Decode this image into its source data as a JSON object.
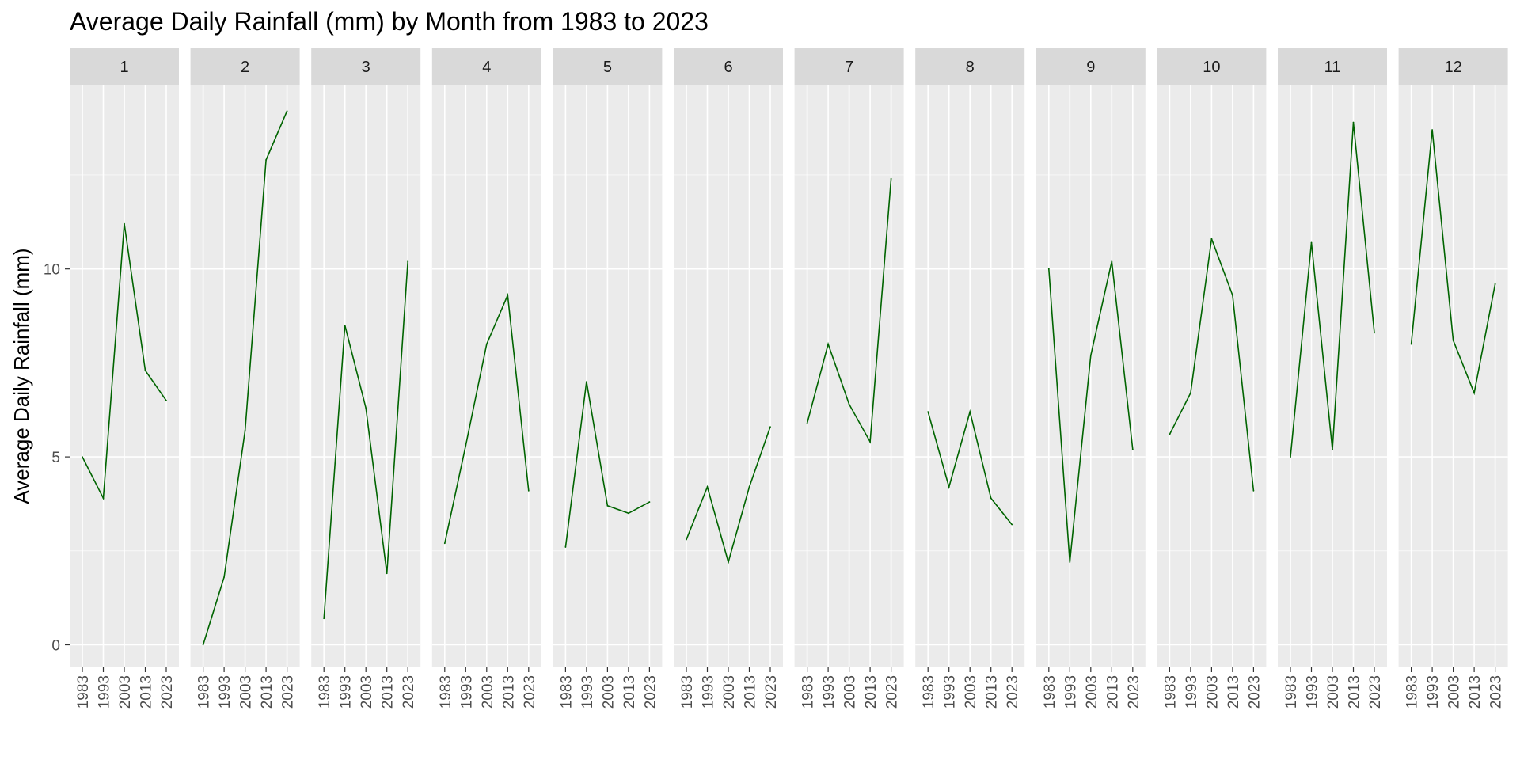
{
  "chart_data": {
    "type": "line",
    "title": "Average Daily Rainfall (mm) by Month from 1983 to 2023",
    "ylabel": "Average Daily Rainfall (mm)",
    "xlabel": "",
    "ylim": [
      -0.6,
      14.9
    ],
    "yticks": [
      0,
      5,
      10
    ],
    "x": [
      1983,
      1993,
      2003,
      2013,
      2023
    ],
    "line_color": "#006400",
    "panel_bg": "#ebebeb",
    "strip_bg": "#d9d9d9",
    "panels": [
      {
        "label": "1",
        "values": [
          5.0,
          3.9,
          11.2,
          7.3,
          6.5
        ]
      },
      {
        "label": "2",
        "values": [
          0.0,
          1.8,
          5.7,
          12.9,
          14.2
        ]
      },
      {
        "label": "3",
        "values": [
          0.7,
          8.5,
          6.3,
          1.9,
          10.2
        ]
      },
      {
        "label": "4",
        "values": [
          2.7,
          5.3,
          8.0,
          9.3,
          4.1
        ]
      },
      {
        "label": "5",
        "values": [
          2.6,
          7.0,
          3.7,
          3.5,
          3.8
        ]
      },
      {
        "label": "6",
        "values": [
          2.8,
          4.2,
          2.2,
          4.2,
          5.8
        ]
      },
      {
        "label": "7",
        "values": [
          5.9,
          8.0,
          6.4,
          5.4,
          12.4
        ]
      },
      {
        "label": "8",
        "values": [
          6.2,
          4.2,
          6.2,
          3.9,
          3.2
        ]
      },
      {
        "label": "9",
        "values": [
          10.0,
          2.2,
          7.7,
          10.2,
          5.2
        ]
      },
      {
        "label": "10",
        "values": [
          5.6,
          6.7,
          10.8,
          9.3,
          4.1
        ]
      },
      {
        "label": "11",
        "values": [
          5.0,
          10.7,
          5.2,
          13.9,
          8.3
        ]
      },
      {
        "label": "12",
        "values": [
          8.0,
          13.7,
          8.1,
          6.7,
          9.6
        ]
      }
    ]
  }
}
